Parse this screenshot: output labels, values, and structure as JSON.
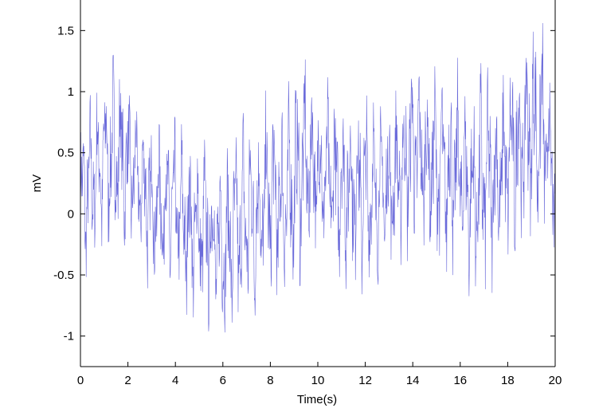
{
  "chart_data": {
    "type": "line",
    "title": "",
    "xlabel": "Time(s)",
    "ylabel": "mV",
    "xlim": [
      0,
      20
    ],
    "ylim": [
      -1.25,
      1.75
    ],
    "xticks": [
      0,
      2,
      4,
      6,
      8,
      10,
      12,
      14,
      16,
      18,
      20
    ],
    "xtick_labels": [
      "0",
      "2",
      "4",
      "6",
      "8",
      "10",
      "12",
      "14",
      "16",
      "18",
      "20"
    ],
    "yticks": [
      -1,
      -0.5,
      0,
      0.5,
      1,
      1.5
    ],
    "ytick_labels": [
      "-1",
      "-0.5",
      "0",
      "0.5",
      "1",
      "1.5"
    ],
    "grid": false,
    "line_color": "#5a5ad6",
    "series": [
      {
        "envelope_x": [
          0,
          0.5,
          1,
          1.5,
          2,
          2.5,
          3,
          3.5,
          4,
          4.5,
          5,
          5.5,
          6,
          6.5,
          7,
          7.5,
          8,
          8.5,
          9,
          9.5,
          10,
          10.5,
          11,
          11.5,
          12,
          12.5,
          13,
          13.5,
          14,
          14.5,
          15,
          15.5,
          16,
          16.5,
          17,
          17.5,
          18,
          18.5,
          19,
          19.5,
          20
        ],
        "upper": [
          0.9,
          1.0,
          1.25,
          1.35,
          1.1,
          0.95,
          0.85,
          0.85,
          0.8,
          0.75,
          0.7,
          0.65,
          0.5,
          0.75,
          0.9,
          0.95,
          1.1,
          0.95,
          1.2,
          1.4,
          1.2,
          1.1,
          1.05,
          1.2,
          1.05,
          1.0,
          1.0,
          1.1,
          1.45,
          1.2,
          1.25,
          1.2,
          1.3,
          1.0,
          1.35,
          1.1,
          1.3,
          1.45,
          1.7,
          1.65,
          0.85
        ],
        "lower": [
          -0.75,
          -0.45,
          -0.35,
          -0.3,
          -0.35,
          -0.45,
          -0.7,
          -0.7,
          -0.75,
          -0.95,
          -0.95,
          -1.05,
          -1.05,
          -1.1,
          -0.95,
          -0.95,
          -0.85,
          -0.8,
          -0.7,
          -0.55,
          -0.5,
          -0.55,
          -0.6,
          -0.7,
          -0.7,
          -0.65,
          -0.55,
          -0.45,
          -0.35,
          -0.35,
          -0.45,
          -0.6,
          -0.6,
          -0.75,
          -0.75,
          -0.6,
          -0.45,
          -0.35,
          -0.25,
          -0.3,
          -0.45
        ]
      }
    ]
  }
}
